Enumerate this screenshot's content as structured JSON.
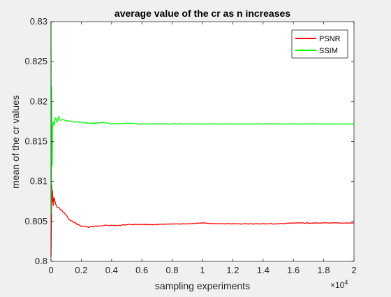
{
  "chart_data": {
    "type": "line",
    "title": "average value of the cr as n increases",
    "xlabel": "sampling experiments",
    "ylabel": "mean of the cr values",
    "x_exponent_label": "×10",
    "x_exponent_power": "4",
    "xlim": [
      0,
      20000
    ],
    "ylim": [
      0.8,
      0.83
    ],
    "x_ticks": [
      0,
      2000,
      4000,
      6000,
      8000,
      10000,
      12000,
      14000,
      16000,
      18000,
      20000
    ],
    "x_tick_labels": [
      "0",
      "0.2",
      "0.4",
      "0.6",
      "0.8",
      "1",
      "1.2",
      "1.4",
      "1.6",
      "1.8",
      "2"
    ],
    "y_ticks": [
      0.8,
      0.805,
      0.81,
      0.815,
      0.82,
      0.825,
      0.83
    ],
    "y_tick_labels": [
      "0.8",
      "0.805",
      "0.81",
      "0.815",
      "0.82",
      "0.825",
      "0.83"
    ],
    "grid": false,
    "legend_position": "top-right",
    "series": [
      {
        "name": "PSNR",
        "color": "#ff0000",
        "points": [
          [
            1,
            0.8006
          ],
          [
            20,
            0.8035
          ],
          [
            40,
            0.806
          ],
          [
            60,
            0.8095
          ],
          [
            80,
            0.8075
          ],
          [
            100,
            0.8088
          ],
          [
            150,
            0.807
          ],
          [
            200,
            0.808
          ],
          [
            300,
            0.8072
          ],
          [
            400,
            0.8068
          ],
          [
            600,
            0.8066
          ],
          [
            800,
            0.8062
          ],
          [
            1000,
            0.8058
          ],
          [
            1200,
            0.8052
          ],
          [
            1400,
            0.805
          ],
          [
            1600,
            0.8048
          ],
          [
            1800,
            0.8046
          ],
          [
            2000,
            0.8044
          ],
          [
            2500,
            0.8043
          ],
          [
            3000,
            0.8044
          ],
          [
            3500,
            0.8045
          ],
          [
            4000,
            0.8045
          ],
          [
            4500,
            0.8045
          ],
          [
            5000,
            0.8046
          ],
          [
            6000,
            0.8046
          ],
          [
            7000,
            0.8046
          ],
          [
            8000,
            0.8047
          ],
          [
            9000,
            0.8047
          ],
          [
            10000,
            0.8048
          ],
          [
            11000,
            0.8047
          ],
          [
            12000,
            0.8047
          ],
          [
            13000,
            0.8047
          ],
          [
            14000,
            0.8047
          ],
          [
            15000,
            0.8047
          ],
          [
            16000,
            0.8048
          ],
          [
            17000,
            0.8048
          ],
          [
            18000,
            0.8048
          ],
          [
            19000,
            0.8048
          ],
          [
            20000,
            0.8048
          ]
        ]
      },
      {
        "name": "SSIM",
        "color": "#00ff00",
        "points": [
          [
            1,
            0.83
          ],
          [
            15,
            0.818
          ],
          [
            30,
            0.806
          ],
          [
            45,
            0.822
          ],
          [
            60,
            0.815
          ],
          [
            80,
            0.812
          ],
          [
            100,
            0.8165
          ],
          [
            150,
            0.8175
          ],
          [
            200,
            0.817
          ],
          [
            300,
            0.818
          ],
          [
            400,
            0.8174
          ],
          [
            500,
            0.8182
          ],
          [
            600,
            0.8176
          ],
          [
            800,
            0.8177
          ],
          [
            1000,
            0.8176
          ],
          [
            1500,
            0.8175
          ],
          [
            2000,
            0.8174
          ],
          [
            2500,
            0.8173
          ],
          [
            3000,
            0.8173
          ],
          [
            3500,
            0.8174
          ],
          [
            4000,
            0.8172
          ],
          [
            5000,
            0.8173
          ],
          [
            6000,
            0.8172
          ],
          [
            7000,
            0.8172
          ],
          [
            8000,
            0.8172
          ],
          [
            9000,
            0.8172
          ],
          [
            10000,
            0.8172
          ],
          [
            11000,
            0.8172
          ],
          [
            12000,
            0.8172
          ],
          [
            13000,
            0.8172
          ],
          [
            14000,
            0.8172
          ],
          [
            15000,
            0.8172
          ],
          [
            16000,
            0.8172
          ],
          [
            17000,
            0.8172
          ],
          [
            18000,
            0.8172
          ],
          [
            19000,
            0.8172
          ],
          [
            20000,
            0.8172
          ]
        ]
      }
    ]
  }
}
